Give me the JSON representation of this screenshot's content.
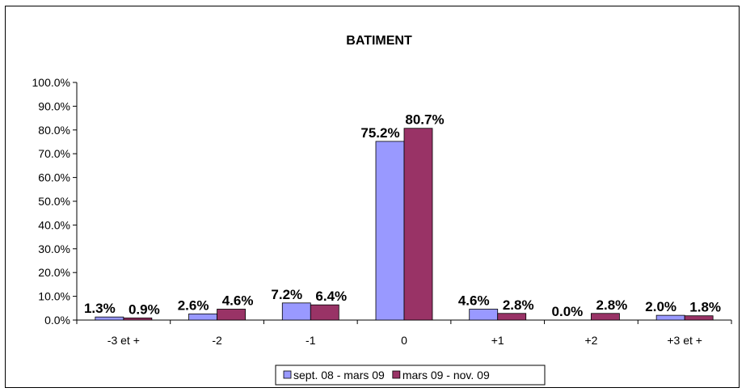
{
  "chart_data": {
    "type": "bar",
    "title": "BATIMENT",
    "xlabel": "",
    "ylabel": "",
    "categories": [
      "-3 et +",
      "-2",
      "-1",
      "0",
      "+1",
      "+2",
      "+3 et +"
    ],
    "series": [
      {
        "name": "sept. 08 - mars 09",
        "color": "#9999ff",
        "values": [
          1.3,
          2.6,
          7.2,
          75.2,
          4.6,
          0.0,
          2.0
        ],
        "labels": [
          "1.3%",
          "2.6%",
          "7.2%",
          "75.2%",
          "4.6%",
          "0.0%",
          "2.0%"
        ]
      },
      {
        "name": "mars 09 - nov. 09",
        "color": "#993366",
        "values": [
          0.9,
          4.6,
          6.4,
          80.7,
          2.8,
          2.8,
          1.8
        ],
        "labels": [
          "0.9%",
          "4.6%",
          "6.4%",
          "80.7%",
          "2.8%",
          "2.8%",
          "1.8%"
        ]
      }
    ],
    "ylim": [
      0,
      100
    ],
    "yticks": [
      "0.0%",
      "10.0%",
      "20.0%",
      "30.0%",
      "40.0%",
      "50.0%",
      "60.0%",
      "70.0%",
      "80.0%",
      "90.0%",
      "100.0%"
    ],
    "grid": false,
    "legend_position": "bottom"
  }
}
